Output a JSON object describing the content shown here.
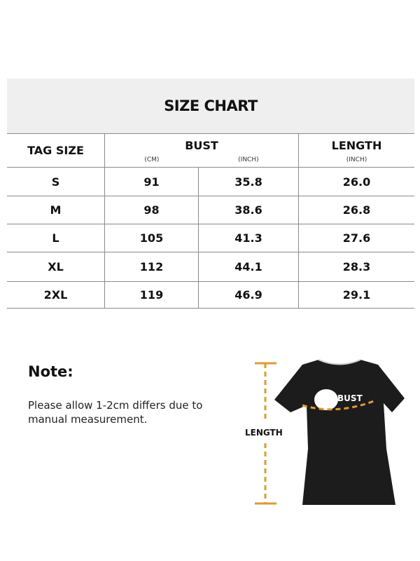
{
  "title": "SIZE CHART",
  "headers": {
    "tag_size": "TAG SIZE",
    "bust": "BUST",
    "bust_cm": "(CM)",
    "bust_inch": "(INCH)",
    "length": "LENGTH",
    "length_inch": "(INCH)"
  },
  "rows": [
    {
      "size": "S",
      "bust_cm": "91",
      "bust_inch": "35.8",
      "length_inch": "26.0"
    },
    {
      "size": "M",
      "bust_cm": "98",
      "bust_inch": "38.6",
      "length_inch": "26.8"
    },
    {
      "size": "L",
      "bust_cm": "105",
      "bust_inch": "41.3",
      "length_inch": "27.6"
    },
    {
      "size": "XL",
      "bust_cm": "112",
      "bust_inch": "44.1",
      "length_inch": "28.3"
    },
    {
      "size": "2XL",
      "bust_cm": "119",
      "bust_inch": "46.9",
      "length_inch": "29.1"
    }
  ],
  "note": {
    "title": "Note:",
    "text": "Please allow 1-2cm differs due to manual measurement."
  },
  "diagram": {
    "bust_label": "BUST",
    "length_label": "LENGTH",
    "accent_color": "#e39a2a",
    "shirt_color": "#1c1c1c"
  }
}
